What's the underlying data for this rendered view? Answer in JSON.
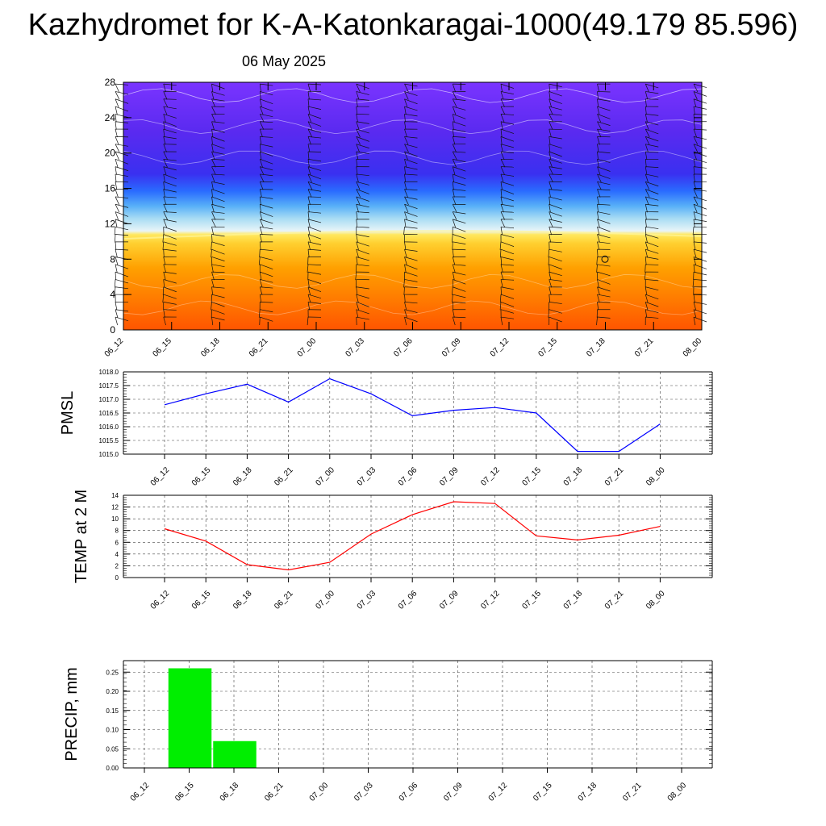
{
  "title": "Kazhydromet for K-A-Katonkaragai-1000(49.179 85.596)",
  "subtitle": "06 May 2025",
  "time_labels": [
    "06_12",
    "06_15",
    "06_18",
    "06_21",
    "07_00",
    "07_03",
    "07_06",
    "07_09",
    "07_12",
    "07_15",
    "07_18",
    "07_21",
    "08_00"
  ],
  "chart_data": [
    {
      "type": "heatmap",
      "yticks": [
        0,
        4,
        8,
        12,
        16,
        20,
        24,
        28
      ],
      "ylim": [
        0,
        28
      ],
      "categories": [
        "06_12",
        "06_15",
        "06_18",
        "06_21",
        "07_00",
        "07_03",
        "07_06",
        "07_09",
        "07_12",
        "07_15",
        "07_18",
        "07_21",
        "08_00"
      ],
      "colors": {
        "warm_low": "#ff5a00",
        "warm_mid": "#ff9a00",
        "warm_high": "#ffe040",
        "cool_low": "#c8ecf8",
        "cool_mid": "#2f86ff",
        "cold": "#5a28ff",
        "coldest": "#7a30ff"
      }
    },
    {
      "type": "line",
      "ylabel": "PMSL",
      "categories": [
        "06_12",
        "06_15",
        "06_18",
        "06_21",
        "07_00",
        "07_03",
        "07_06",
        "07_09",
        "07_12",
        "07_15",
        "07_18",
        "07_21",
        "08_00"
      ],
      "values": [
        1016.8,
        1017.2,
        1017.55,
        1016.9,
        1017.75,
        1017.2,
        1016.4,
        1016.6,
        1016.7,
        1016.5,
        1015.1,
        1015.1,
        1016.1
      ],
      "ylim": [
        1015.0,
        1018.0
      ],
      "yticks": [
        "1015.0",
        "1015.5",
        "1016.0",
        "1016.5",
        "1017.0",
        "1017.5",
        "1018.0"
      ],
      "color": "#0000ff",
      "grid": true
    },
    {
      "type": "line",
      "ylabel": "TEMP at 2 M",
      "categories": [
        "06_12",
        "06_15",
        "06_18",
        "06_21",
        "07_00",
        "07_03",
        "07_06",
        "07_09",
        "07_12",
        "07_15",
        "07_18",
        "07_21",
        "08_00"
      ],
      "values": [
        8.3,
        6.2,
        2.2,
        1.3,
        2.6,
        7.4,
        10.7,
        12.9,
        12.6,
        7.1,
        6.4,
        7.2,
        8.7
      ],
      "ylim": [
        0,
        14
      ],
      "yticks": [
        "0",
        "2",
        "4",
        "6",
        "8",
        "10",
        "12",
        "14"
      ],
      "color": "#ff0000",
      "grid": true
    },
    {
      "type": "bar",
      "ylabel": "PRECIP, mm",
      "categories": [
        "06_12",
        "06_15",
        "06_18",
        "06_21",
        "07_00",
        "07_03",
        "07_06",
        "07_09",
        "07_12",
        "07_15",
        "07_18",
        "07_21",
        "08_00"
      ],
      "values": [
        0,
        0.26,
        0.07,
        0,
        0,
        0,
        0,
        0,
        0,
        0,
        0,
        0,
        0
      ],
      "ylim": [
        0,
        0.28
      ],
      "yticks": [
        "0.00",
        "0.05",
        "0.10",
        "0.15",
        "0.20",
        "0.25"
      ],
      "color": "#00ee00",
      "grid": true
    }
  ]
}
